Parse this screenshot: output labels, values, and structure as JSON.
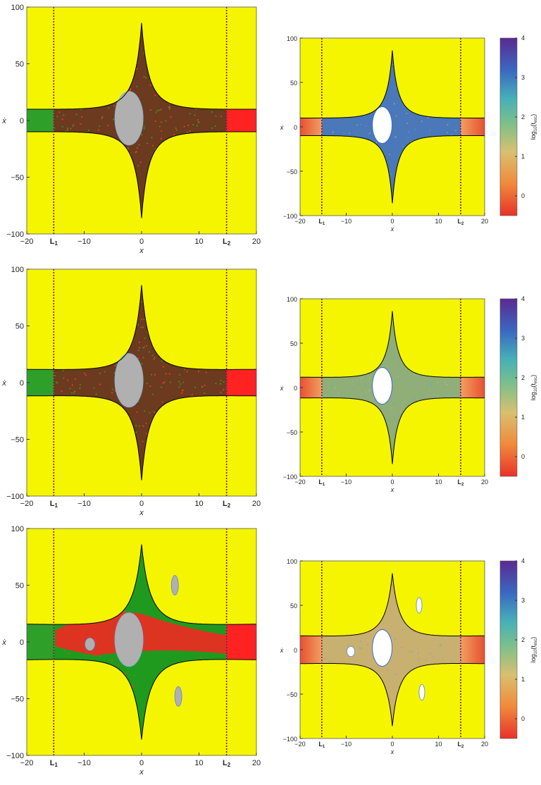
{
  "chart_data": [
    {
      "type": "heatmap",
      "panel": "row1-left",
      "xlabel": "x",
      "ylabel": "ẋ",
      "xlim": [
        -20,
        20
      ],
      "ylim": [
        -100,
        100
      ],
      "x_ticks": [
        "−20",
        "−10",
        "0",
        "10",
        "20"
      ],
      "y_ticks": [
        "−100",
        "−50",
        "0",
        "50",
        "100"
      ],
      "vlines": [
        {
          "x": -15.3,
          "label": "L",
          "sub": "1"
        },
        {
          "x": 14.8,
          "label": "L",
          "sub": "2"
        }
      ],
      "colors": {
        "background": "#f5f500",
        "region": "#6b3a1f",
        "island": "#b0b0b0",
        "left_exit": "#2ea02a",
        "right_exit": "#ff2222"
      }
    },
    {
      "type": "heatmap",
      "panel": "row1-right",
      "xlabel": "x",
      "ylabel": "ẋ",
      "xlim": [
        -20,
        20
      ],
      "ylim": [
        -100,
        100
      ],
      "x_ticks": [
        "−20",
        "−10",
        "0",
        "10",
        "20"
      ],
      "y_ticks": [
        "−100",
        "−50",
        "0",
        "50",
        "100"
      ],
      "vlines": [
        {
          "x": -15.3,
          "label": "L",
          "sub": "1"
        },
        {
          "x": 14.8,
          "label": "L",
          "sub": "2"
        }
      ],
      "colorbar": {
        "label": "log",
        "sub": "10",
        "paren": "(t",
        "sub2": "esc",
        "close": ")",
        "ticks": [
          "0",
          "1",
          "2",
          "3",
          "4"
        ]
      },
      "colors": {
        "background": "#f5f500",
        "region": "#4a78b8",
        "island": "#ffffff",
        "exit": "#e85030"
      }
    },
    {
      "type": "heatmap",
      "panel": "row2-left",
      "xlabel": "x",
      "ylabel": "ẋ",
      "xlim": [
        -20,
        20
      ],
      "ylim": [
        -100,
        100
      ],
      "x_ticks": [
        "−20",
        "−10",
        "0",
        "10",
        "20"
      ],
      "y_ticks": [
        "−100",
        "−50",
        "0",
        "50",
        "100"
      ],
      "vlines": [
        {
          "x": -15.3,
          "label": "L",
          "sub": "1"
        },
        {
          "x": 14.8,
          "label": "L",
          "sub": "2"
        }
      ],
      "colors": {
        "background": "#f5f500",
        "region": "#6b3a1f",
        "island": "#b0b0b0",
        "left_exit": "#2ea02a",
        "right_exit": "#ff2222"
      }
    },
    {
      "type": "heatmap",
      "panel": "row2-right",
      "xlabel": "x",
      "ylabel": "ẋ",
      "xlim": [
        -20,
        20
      ],
      "ylim": [
        -100,
        100
      ],
      "x_ticks": [
        "−20",
        "−10",
        "0",
        "10",
        "20"
      ],
      "y_ticks": [
        "−100",
        "−50",
        "0",
        "50",
        "100"
      ],
      "vlines": [
        {
          "x": -15.3,
          "label": "L",
          "sub": "1"
        },
        {
          "x": 14.8,
          "label": "L",
          "sub": "2"
        }
      ],
      "colorbar": {
        "label": "log",
        "sub": "10",
        "paren": "(t",
        "sub2": "esc",
        "close": ")",
        "ticks": [
          "0",
          "1",
          "2",
          "3",
          "4"
        ]
      },
      "colors": {
        "background": "#f5f500",
        "region": "#8fae78",
        "island": "#ffffff",
        "exit": "#e85030"
      }
    },
    {
      "type": "heatmap",
      "panel": "row3-left",
      "xlabel": "x",
      "ylabel": "ẋ",
      "xlim": [
        -20,
        20
      ],
      "ylim": [
        -100,
        100
      ],
      "x_ticks": [
        "−20",
        "−10",
        "0",
        "10",
        "20"
      ],
      "y_ticks": [
        "−100",
        "−50",
        "0",
        "50",
        "100"
      ],
      "vlines": [
        {
          "x": -15.3,
          "label": "L",
          "sub": "1"
        },
        {
          "x": 14.8,
          "label": "L",
          "sub": "2"
        }
      ],
      "colors": {
        "background": "#f5f500",
        "region": "#1f9a1f",
        "island": "#b0b0b0",
        "left_exit": "#2ea02a",
        "right_exit": "#ff2222"
      }
    },
    {
      "type": "heatmap",
      "panel": "row3-right",
      "xlabel": "x",
      "ylabel": "ẋ",
      "xlim": [
        -20,
        20
      ],
      "ylim": [
        -100,
        100
      ],
      "x_ticks": [
        "−20",
        "−10",
        "0",
        "10",
        "20"
      ],
      "y_ticks": [
        "−100",
        "−50",
        "0",
        "50",
        "100"
      ],
      "vlines": [
        {
          "x": -15.3,
          "label": "L",
          "sub": "1"
        },
        {
          "x": 14.8,
          "label": "L",
          "sub": "2"
        }
      ],
      "colorbar": {
        "label": "log",
        "sub": "10",
        "paren": "(t",
        "sub2": "esc",
        "close": ")",
        "ticks": [
          "0",
          "1",
          "2",
          "3",
          "4"
        ]
      },
      "colors": {
        "background": "#f5f500",
        "region": "#c8b070",
        "island": "#ffffff",
        "exit": "#e85030"
      }
    }
  ]
}
